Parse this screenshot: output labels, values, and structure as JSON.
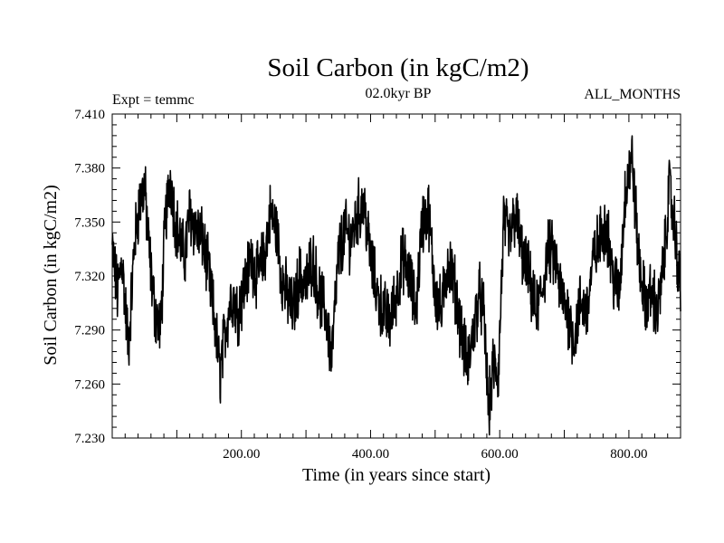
{
  "chart_data": {
    "type": "line",
    "title": "Soil Carbon (in kgC/m2)",
    "subtitle_left": "Expt = temmc",
    "subtitle_center": "02.0kyr BP",
    "subtitle_right": "ALL_MONTHS",
    "xlabel": "Time (in years since start)",
    "ylabel": "Soil Carbon (in kgC/m2)",
    "xlim": [
      0,
      880
    ],
    "ylim": [
      7.23,
      7.41
    ],
    "x_ticks": [
      200,
      400,
      600,
      800
    ],
    "x_tick_labels": [
      "200.00",
      "400.00",
      "600.00",
      "800.00"
    ],
    "y_ticks": [
      7.23,
      7.26,
      7.29,
      7.32,
      7.35,
      7.38,
      7.41
    ],
    "y_tick_labels": [
      "7.230",
      "7.260",
      "7.290",
      "7.320",
      "7.350",
      "7.380",
      "7.410"
    ],
    "line_color": "#000000",
    "series": [
      {
        "name": "Soil Carbon",
        "x": [
          0,
          8,
          15,
          25,
          35,
          42,
          50,
          58,
          66,
          75,
          82,
          90,
          98,
          105,
          112,
          120,
          130,
          140,
          150,
          160,
          167,
          175,
          185,
          195,
          205,
          215,
          225,
          235,
          245,
          255,
          262,
          270,
          280,
          290,
          300,
          310,
          320,
          330,
          340,
          350,
          360,
          370,
          380,
          390,
          400,
          410,
          420,
          430,
          440,
          450,
          460,
          470,
          480,
          490,
          500,
          510,
          520,
          530,
          540,
          550,
          560,
          568,
          575,
          583,
          590,
          598,
          606,
          615,
          625,
          635,
          645,
          655,
          665,
          675,
          685,
          695,
          705,
          715,
          725,
          735,
          745,
          755,
          765,
          775,
          785,
          795,
          805,
          815,
          825,
          835,
          845,
          855,
          862,
          870,
          880
        ],
        "y": [
          7.335,
          7.31,
          7.33,
          7.28,
          7.34,
          7.36,
          7.37,
          7.33,
          7.3,
          7.29,
          7.35,
          7.375,
          7.35,
          7.34,
          7.33,
          7.355,
          7.345,
          7.34,
          7.32,
          7.29,
          7.265,
          7.29,
          7.31,
          7.3,
          7.315,
          7.33,
          7.32,
          7.33,
          7.355,
          7.345,
          7.32,
          7.31,
          7.3,
          7.32,
          7.315,
          7.33,
          7.31,
          7.3,
          7.275,
          7.33,
          7.345,
          7.34,
          7.355,
          7.36,
          7.33,
          7.31,
          7.3,
          7.295,
          7.31,
          7.33,
          7.32,
          7.3,
          7.35,
          7.355,
          7.31,
          7.3,
          7.33,
          7.315,
          7.29,
          7.27,
          7.29,
          7.31,
          7.3,
          7.245,
          7.27,
          7.265,
          7.35,
          7.34,
          7.355,
          7.33,
          7.32,
          7.3,
          7.31,
          7.335,
          7.33,
          7.31,
          7.3,
          7.285,
          7.305,
          7.3,
          7.33,
          7.34,
          7.35,
          7.32,
          7.31,
          7.37,
          7.385,
          7.33,
          7.305,
          7.31,
          7.3,
          7.33,
          7.37,
          7.35,
          7.31
        ]
      }
    ]
  }
}
